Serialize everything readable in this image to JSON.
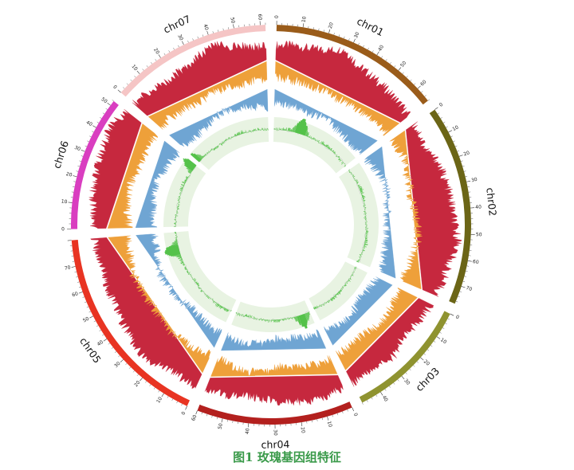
{
  "figure": {
    "caption": "图1 玫瑰基因组特征"
  },
  "chart_data": {
    "type": "circos",
    "chromosomes": [
      {
        "name": "chr01",
        "length": 66,
        "color": "#9a5c1a",
        "ticks": [
          "0",
          "10",
          "20",
          "30",
          "40",
          "50",
          "60"
        ]
      },
      {
        "name": "chr02",
        "length": 77,
        "color": "#6b6516",
        "ticks": [
          "0",
          "10",
          "20",
          "30",
          "40",
          "50",
          "60",
          "70"
        ]
      },
      {
        "name": "chr03",
        "length": 48,
        "color": "#8f9330",
        "ticks": [
          "0",
          "10",
          "20",
          "30",
          "40"
        ]
      },
      {
        "name": "chr04",
        "length": 60,
        "color": "#b3201e",
        "ticks": [
          "0",
          "10",
          "20",
          "30",
          "40",
          "50",
          "60"
        ]
      },
      {
        "name": "chr05",
        "length": 80,
        "color": "#e83422",
        "ticks": [
          "0",
          "10",
          "20",
          "30",
          "40",
          "50",
          "60",
          "70"
        ]
      },
      {
        "name": "chr06",
        "length": 52,
        "color": "#d93ec0",
        "ticks": [
          "0",
          "10",
          "20",
          "30",
          "40",
          "50"
        ]
      },
      {
        "name": "chr07",
        "length": 62,
        "color": "#f5c5c5",
        "ticks": [
          "0",
          "10",
          "20",
          "30",
          "40",
          "50",
          "60"
        ]
      }
    ],
    "tracks": [
      {
        "color": "#c6283e",
        "values": [
          0.55,
          0.6,
          0.58,
          0.7,
          0.95,
          0.62,
          0.55,
          0.5,
          0.45,
          0.4,
          0.35,
          0.25,
          0.5,
          0.55,
          0.6,
          0.65,
          0.7,
          0.9,
          0.65,
          0.6,
          0.55,
          0.45,
          0.4,
          0.3,
          0.55,
          0.5,
          0.45,
          0.5,
          0.55,
          0.6,
          0.5,
          0.45,
          0.35,
          0.3,
          0.4,
          0.45,
          0.5,
          0.45,
          0.55,
          0.7,
          0.6,
          0.5,
          0.45,
          0.4,
          0.35,
          0.3,
          0.4,
          0.45,
          0.5,
          0.6,
          0.65,
          0.7,
          0.75,
          0.9,
          0.7,
          0.6,
          0.5,
          0.45,
          0.55,
          0.7,
          0.9,
          0.65,
          0.55,
          0.5
        ]
      },
      {
        "color": "#eea03a",
        "values": [
          0.6,
          0.65,
          0.7,
          0.75,
          0.7,
          0.8,
          0.72,
          0.7,
          0.65,
          0.6,
          0.58,
          0.55,
          0.7,
          0.75,
          0.8,
          0.7,
          0.65,
          0.6,
          0.7,
          0.75,
          0.8,
          0.7,
          0.65,
          0.6,
          0.7,
          0.75,
          0.72,
          0.65,
          0.6,
          0.7,
          0.75,
          0.8,
          0.6,
          0.55,
          0.6,
          0.7,
          0.75,
          0.7,
          0.65,
          0.6,
          0.7,
          0.72,
          0.75,
          0.7,
          0.65,
          0.7,
          0.75,
          0.8,
          0.72,
          0.68,
          0.65,
          0.7,
          0.75,
          0.7,
          0.65,
          0.6,
          0.7,
          0.75,
          0.8,
          0.7,
          0.75,
          0.8,
          0.7,
          0.65
        ]
      },
      {
        "color": "#6fa5d3",
        "values": [
          0.5,
          0.55,
          0.6,
          0.7,
          0.65,
          0.6,
          0.75,
          0.8,
          0.85,
          0.8,
          0.75,
          0.65,
          0.55,
          0.6,
          0.7,
          0.75,
          0.8,
          0.78,
          0.75,
          0.7,
          0.65,
          0.7,
          0.75,
          0.8,
          0.6,
          0.55,
          0.6,
          0.65,
          0.7,
          0.75,
          0.8,
          0.85,
          0.65,
          0.6,
          0.55,
          0.6,
          0.65,
          0.7,
          0.75,
          0.8,
          0.7,
          0.65,
          0.6,
          0.55,
          0.6,
          0.7,
          0.75,
          0.7,
          0.65,
          0.6,
          0.55,
          0.5,
          0.6,
          0.65,
          0.7,
          0.75,
          0.8,
          0.7,
          0.6,
          0.5,
          0.55,
          0.6,
          0.65,
          0.7
        ]
      },
      {
        "color": "#55c24a",
        "values": [
          0.2,
          0.25,
          0.3,
          0.9,
          0.25,
          0.2,
          0.3,
          0.25,
          0.2,
          0.15,
          0.2,
          0.25,
          0.3,
          0.25,
          0.2,
          0.15,
          0.2,
          0.25,
          0.3,
          0.2,
          0.15,
          0.2,
          0.25,
          0.2,
          0.3,
          0.25,
          0.2,
          0.15,
          0.85,
          0.25,
          0.2,
          0.3,
          0.25,
          0.2,
          0.15,
          0.2,
          0.25,
          0.3,
          0.2,
          0.25,
          0.2,
          0.15,
          0.2,
          0.25,
          0.3,
          0.9,
          0.2,
          0.25,
          0.2,
          0.15,
          0.2,
          0.25,
          0.3,
          0.2,
          0.85,
          0.25,
          0.2,
          0.15,
          0.2,
          0.25,
          0.3,
          0.2,
          0.25,
          0.2
        ]
      }
    ]
  }
}
